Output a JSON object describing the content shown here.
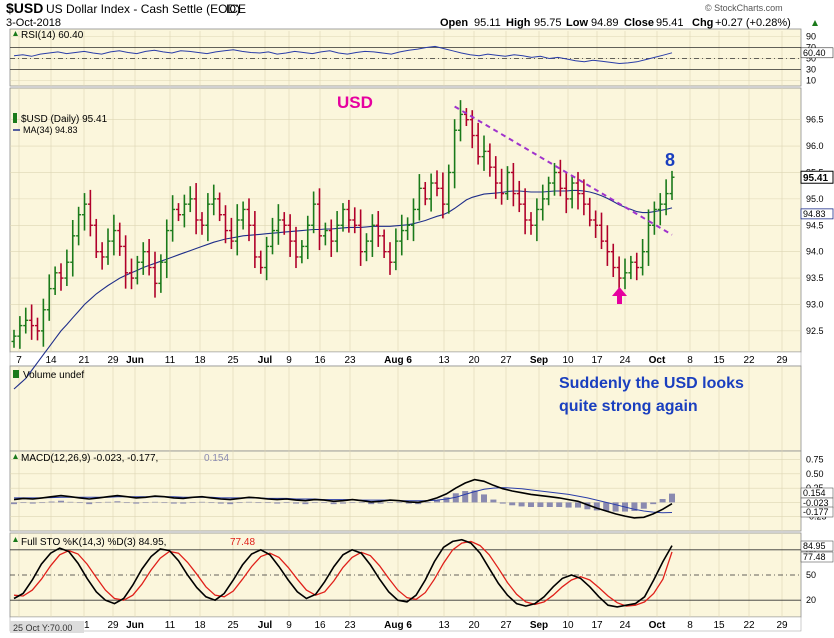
{
  "header": {
    "symbol": "$USD",
    "name": "US Dollar Index - Cash Settle (EOD)",
    "exchange": "ICE",
    "date": "3-Oct-2018",
    "open_label": "Open",
    "open": "95.11",
    "high_label": "High",
    "high": "95.75",
    "low_label": "Low",
    "low": "94.89",
    "close_label": "Close",
    "close": "95.41",
    "chg_label": "Chg",
    "chg": "+0.27 (+0.28%)",
    "chg_arrow": "triangle-up-icon",
    "watermark": "© StockCharts.com"
  },
  "annotations": {
    "usd_label": "USD",
    "count_label": "8",
    "comment_line1": "Suddenly the USD looks",
    "comment_line2": "quite strong again",
    "arrow": "up-arrow-icon"
  },
  "colors": {
    "panel_bg": "#fbf6dc",
    "up_bar": "#1a7a1a",
    "down_bar": "#b0002a",
    "ma_line": "#1f2e8a",
    "trendline": "#a033cc",
    "magenta": "#e6009f",
    "blue_text": "#1a3fbf",
    "macd_fast": "#000000",
    "macd_signal": "#2a3da8",
    "histogram": "#8a8ab0",
    "sto_k": "#000000",
    "sto_d": "#e0201a"
  },
  "chart_data": [
    {
      "type": "line",
      "panel": "rsi",
      "legend": "RSI(14) 60.40",
      "ylim": [
        0,
        100
      ],
      "ticks": [
        "90",
        "70",
        "50",
        "30",
        "10"
      ],
      "levels": [
        70,
        50,
        30
      ],
      "current_label": "60.40",
      "values": [
        55,
        57,
        54,
        58,
        60,
        62,
        59,
        61,
        63,
        60,
        58,
        62,
        64,
        61,
        59,
        63,
        65,
        62,
        60,
        64,
        63,
        61,
        59,
        62,
        64,
        66,
        63,
        61,
        60,
        62,
        58,
        60,
        63,
        61,
        59,
        62,
        64,
        60,
        58,
        61,
        63,
        62,
        60,
        58,
        62,
        65,
        67,
        70,
        72,
        68,
        64,
        60,
        57,
        55,
        58,
        56,
        54,
        57,
        55,
        52,
        54,
        50,
        52,
        49,
        46,
        44,
        47,
        45,
        43,
        41,
        42,
        44,
        48,
        52,
        56,
        60.4
      ]
    },
    {
      "type": "ohlc",
      "panel": "price",
      "legend": "$USD (Daily) 95.41",
      "ma_legend": "MA(34) 94.83",
      "ylim": [
        92.1,
        97.1
      ],
      "y_ticks": [
        "96.5",
        "96.0",
        "95.5",
        "95.0",
        "94.5",
        "94.0",
        "93.5",
        "93.0",
        "92.5"
      ],
      "tick_values": [
        96.5,
        96.0,
        95.5,
        95.0,
        94.5,
        94.0,
        93.5,
        93.0,
        92.5
      ],
      "last_price_label": "95.41",
      "ma_price_label": "94.83",
      "x_tick_labels": [
        "7",
        "14",
        "21",
        "29",
        "Jun",
        "11",
        "18",
        "25",
        "Jul",
        "9",
        "16",
        "23",
        "Aug 6",
        "13",
        "20",
        "27",
        "Sep",
        "10",
        "17",
        "24",
        "Oct",
        "8",
        "15",
        "22",
        "29"
      ],
      "close": [
        92.4,
        92.6,
        92.7,
        92.6,
        92.5,
        92.9,
        93.3,
        93.6,
        93.5,
        93.8,
        94.3,
        94.7,
        94.9,
        94.5,
        94.0,
        93.9,
        94.2,
        94.4,
        94.1,
        93.6,
        93.5,
        93.8,
        94.0,
        93.7,
        93.4,
        93.8,
        94.4,
        94.8,
        94.7,
        94.9,
        95.0,
        94.6,
        94.5,
        94.9,
        95.0,
        94.7,
        94.4,
        94.2,
        94.6,
        94.8,
        94.5,
        93.9,
        93.7,
        94.1,
        94.4,
        94.6,
        94.5,
        94.2,
        93.9,
        94.1,
        94.5,
        94.9,
        94.3,
        94.4,
        94.2,
        94.5,
        94.8,
        94.6,
        94.5,
        94.0,
        94.2,
        94.5,
        94.3,
        94.0,
        93.8,
        94.2,
        94.4,
        94.5,
        94.8,
        95.2,
        95.0,
        95.3,
        95.2,
        94.9,
        95.5,
        96.3,
        96.6,
        96.5,
        96.2,
        95.8,
        95.9,
        95.6,
        95.3,
        95.1,
        95.5,
        95.1,
        94.9,
        94.6,
        94.5,
        94.8,
        95.0,
        95.3,
        95.5,
        95.2,
        95.0,
        95.3,
        95.1,
        94.9,
        94.6,
        94.5,
        94.2,
        94.0,
        93.7,
        93.5,
        93.6,
        93.8,
        93.7,
        94.0,
        94.5,
        94.8,
        94.9,
        95.1,
        95.41
      ],
      "ma34": [
        91.4,
        91.5,
        91.6,
        91.75,
        91.9,
        92.05,
        92.2,
        92.35,
        92.5,
        92.62,
        92.75,
        92.87,
        93.0,
        93.1,
        93.2,
        93.28,
        93.36,
        93.43,
        93.5,
        93.55,
        93.6,
        93.65,
        93.7,
        93.74,
        93.78,
        93.82,
        93.86,
        93.9,
        93.94,
        93.98,
        94.02,
        94.06,
        94.1,
        94.14,
        94.18,
        94.21,
        94.24,
        94.26,
        94.28,
        94.3,
        94.31,
        94.32,
        94.33,
        94.34,
        94.35,
        94.36,
        94.37,
        94.38,
        94.39,
        94.4,
        94.41,
        94.42,
        94.42,
        94.43,
        94.43,
        94.44,
        94.45,
        94.46,
        94.46,
        94.46,
        94.47,
        94.48,
        94.48,
        94.48,
        94.48,
        94.49,
        94.5,
        94.51,
        94.53,
        94.56,
        94.59,
        94.63,
        94.67,
        94.7,
        94.75,
        94.82,
        94.9,
        94.98,
        95.03,
        95.06,
        95.09,
        95.1,
        95.11,
        95.12,
        95.14,
        95.15,
        95.15,
        95.14,
        95.13,
        95.13,
        95.13,
        95.14,
        95.15,
        95.15,
        95.15,
        95.16,
        95.16,
        95.15,
        95.13,
        95.1,
        95.06,
        95.01,
        94.95,
        94.89,
        94.84,
        94.8,
        94.76,
        94.74,
        94.74,
        94.76,
        94.78,
        94.8,
        94.83
      ],
      "trendline": [
        [
          75,
          96.75
        ],
        [
          112,
          94.32
        ]
      ]
    },
    {
      "type": "bar",
      "panel": "volume",
      "legend": "Volume undef",
      "values": []
    },
    {
      "type": "line",
      "panel": "macd",
      "legend_main": "MACD(12,26,9) -0.023, -0.177,",
      "legend_hist": "0.154",
      "ylim": [
        -0.5,
        0.9
      ],
      "ticks": [
        "0.75",
        "0.50",
        "0.25",
        "0.00",
        "-0.25"
      ],
      "tick_values": [
        0.75,
        0.5,
        0.25,
        0.0,
        -0.25
      ],
      "value_labels": [
        "0.154",
        "-0.023",
        "-0.177"
      ],
      "macd": [
        0.05,
        0.07,
        0.06,
        0.08,
        0.1,
        0.12,
        0.1,
        0.08,
        0.06,
        0.08,
        0.1,
        0.12,
        0.1,
        0.08,
        0.09,
        0.11,
        0.1,
        0.08,
        0.07,
        0.09,
        0.1,
        0.08,
        0.06,
        0.05,
        0.07,
        0.09,
        0.08,
        0.06,
        0.05,
        0.06,
        0.04,
        0.03,
        0.05,
        0.04,
        0.02,
        0.03,
        0.05,
        0.03,
        0.01,
        0.02,
        0.04,
        0.03,
        0.01,
        0.0,
        0.03,
        0.08,
        0.15,
        0.25,
        0.34,
        0.4,
        0.37,
        0.3,
        0.24,
        0.2,
        0.17,
        0.14,
        0.12,
        0.1,
        0.08,
        0.05,
        0.02,
        -0.04,
        -0.1,
        -0.15,
        -0.2,
        -0.24,
        -0.27,
        -0.26,
        -0.2,
        -0.12,
        -0.023
      ],
      "signal": [
        0.08,
        0.08,
        0.08,
        0.08,
        0.085,
        0.09,
        0.09,
        0.09,
        0.09,
        0.09,
        0.09,
        0.1,
        0.1,
        0.1,
        0.1,
        0.1,
        0.1,
        0.1,
        0.09,
        0.09,
        0.09,
        0.09,
        0.08,
        0.08,
        0.08,
        0.08,
        0.08,
        0.07,
        0.07,
        0.07,
        0.06,
        0.06,
        0.06,
        0.05,
        0.05,
        0.05,
        0.05,
        0.04,
        0.04,
        0.04,
        0.04,
        0.03,
        0.03,
        0.03,
        0.03,
        0.04,
        0.06,
        0.09,
        0.14,
        0.19,
        0.23,
        0.25,
        0.26,
        0.25,
        0.24,
        0.22,
        0.2,
        0.18,
        0.16,
        0.14,
        0.11,
        0.08,
        0.04,
        0.0,
        -0.04,
        -0.08,
        -0.12,
        -0.15,
        -0.17,
        -0.18,
        -0.177
      ]
    },
    {
      "type": "line",
      "panel": "stochastic",
      "legend_main": "Full STO %K(14,3) %D(3) 84.95,",
      "legend_d": "77.48",
      "ylim": [
        0,
        100
      ],
      "ticks": [
        "80",
        "50",
        "20"
      ],
      "tick_values": [
        80,
        50,
        20
      ],
      "value_labels": [
        "84.95",
        "77.48"
      ],
      "k": [
        22,
        28,
        44,
        63,
        76,
        82,
        78,
        64,
        46,
        30,
        20,
        16,
        22,
        38,
        57,
        72,
        81,
        79,
        67,
        50,
        35,
        24,
        20,
        28,
        44,
        62,
        75,
        80,
        74,
        60,
        44,
        30,
        22,
        27,
        42,
        60,
        74,
        80,
        76,
        62,
        45,
        30,
        20,
        18,
        26,
        44,
        66,
        83,
        90,
        92,
        88,
        76,
        58,
        40,
        26,
        16,
        13,
        16,
        24,
        36,
        46,
        50,
        46,
        36,
        24,
        14,
        12,
        14,
        16,
        24,
        44,
        66,
        84.95
      ],
      "d": [
        26,
        25,
        32,
        45,
        61,
        74,
        79,
        75,
        63,
        47,
        32,
        22,
        20,
        26,
        39,
        56,
        70,
        78,
        76,
        65,
        51,
        36,
        26,
        24,
        31,
        45,
        60,
        72,
        76,
        71,
        59,
        45,
        32,
        26,
        30,
        43,
        59,
        71,
        77,
        73,
        61,
        46,
        32,
        23,
        21,
        29,
        45,
        64,
        80,
        88,
        90,
        85,
        74,
        58,
        41,
        27,
        18,
        15,
        18,
        26,
        36,
        44,
        48,
        44,
        35,
        25,
        17,
        13,
        14,
        18,
        28,
        45,
        77.48
      ]
    }
  ],
  "footer": {
    "timestamp": "25 Oct Y:70.00"
  }
}
